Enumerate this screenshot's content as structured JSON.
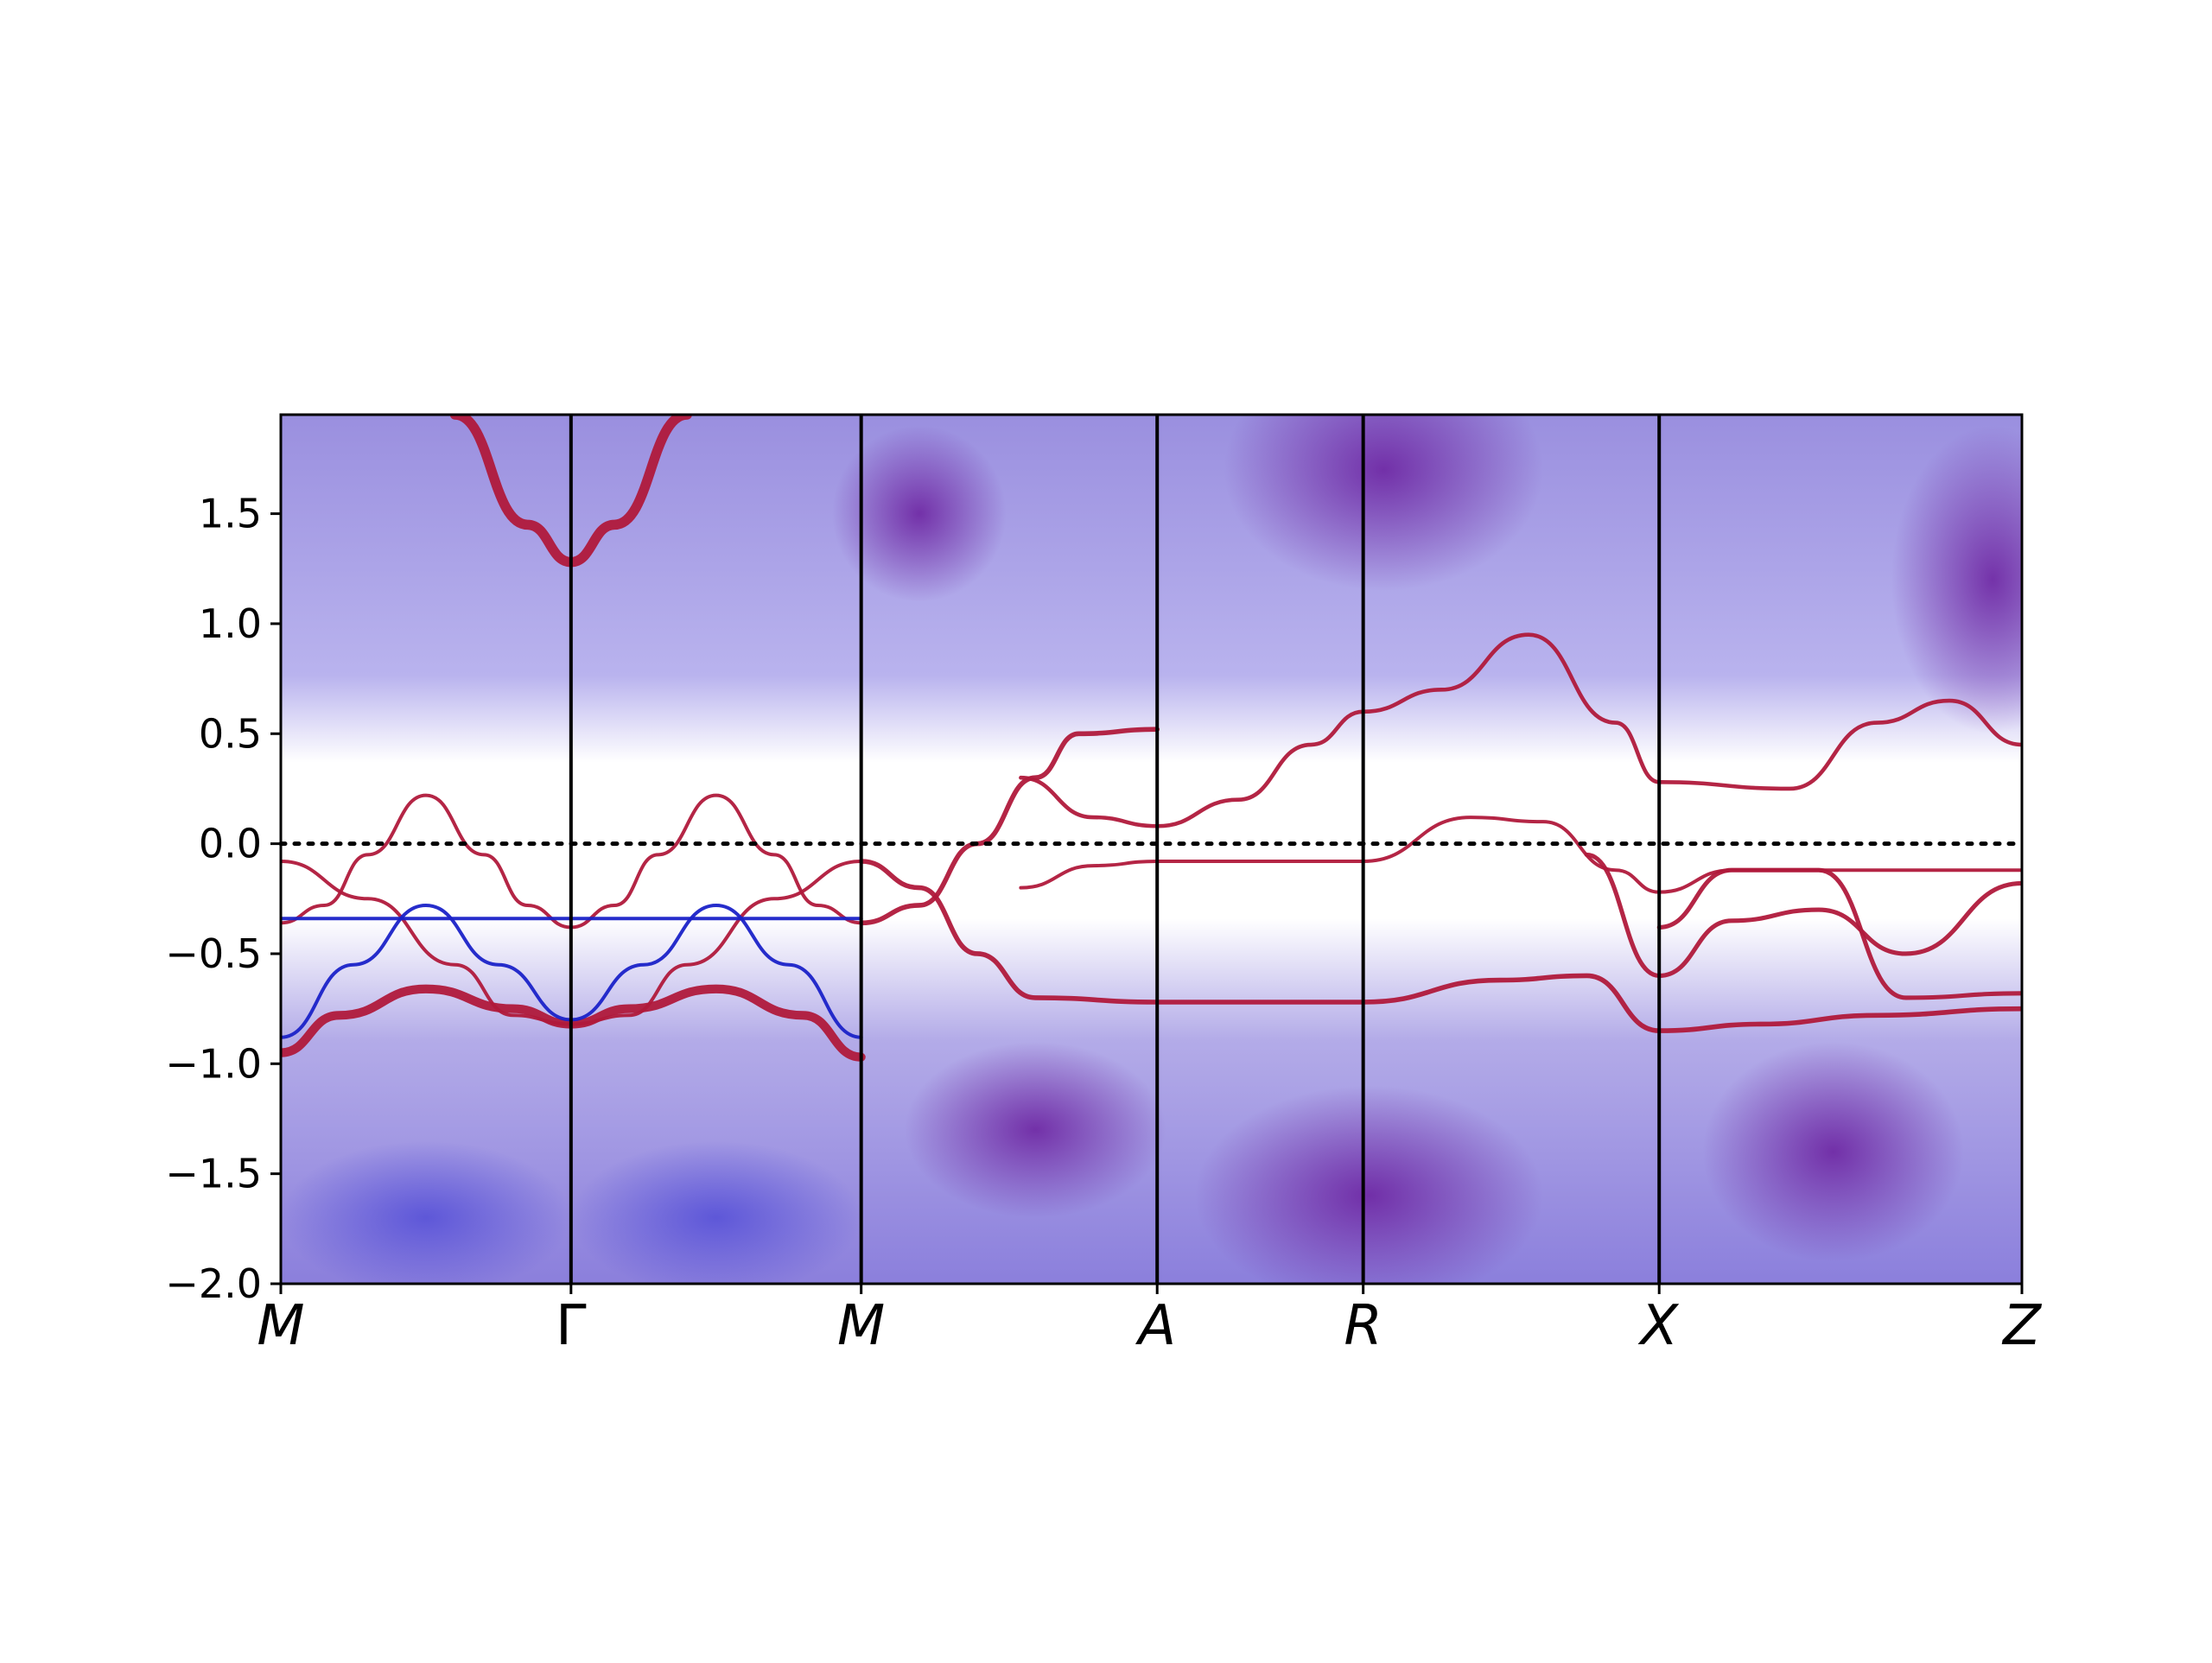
{
  "chart_data": {
    "type": "heatmap",
    "title": "",
    "xlabel": "",
    "ylabel": "",
    "ylim": [
      -2.0,
      1.95
    ],
    "xlim": [
      0,
      6
    ],
    "grid": false,
    "legend": "none",
    "y_ticks": [
      -2.0,
      -1.5,
      -1.0,
      -0.5,
      0.0,
      0.5,
      1.0,
      1.5
    ],
    "y_tick_labels": [
      "−2.0",
      "−1.5",
      "−1.0",
      "−0.5",
      "0.0",
      "0.5",
      "1.0",
      "1.5"
    ],
    "kpoints": [
      {
        "label": "M",
        "x": 0.0,
        "italic": true
      },
      {
        "label": "Γ",
        "x": 1.0,
        "italic": false
      },
      {
        "label": "M",
        "x": 2.0,
        "italic": true
      },
      {
        "label": "A",
        "x": 3.02,
        "italic": true
      },
      {
        "label": "R",
        "x": 3.73,
        "italic": true
      },
      {
        "label": "X",
        "x": 4.75,
        "italic": true
      },
      {
        "label": "Z",
        "x": 6.0,
        "italic": true
      }
    ],
    "fermi_level": 0.0,
    "colors": {
      "bulk_low": "#ffffff",
      "bulk_mid": "#a9a0e6",
      "bulk_high": "#6a1e9e",
      "surface_band": "#b0193b",
      "projected_band": "#1a22c8"
    },
    "bands": [
      {
        "name": "surface-upper-M-Gamma",
        "color": "surface",
        "width": 0.045,
        "points": [
          [
            0.6,
            1.95
          ],
          [
            0.85,
            1.45
          ],
          [
            1.0,
            1.28
          ],
          [
            1.15,
            1.45
          ],
          [
            1.4,
            1.95
          ]
        ]
      },
      {
        "name": "surface-arc-left",
        "color": "surface",
        "width": 0.012,
        "points": [
          [
            0.0,
            -0.36
          ],
          [
            0.15,
            -0.28
          ],
          [
            0.3,
            -0.05
          ],
          [
            0.5,
            0.22
          ],
          [
            0.7,
            -0.05
          ],
          [
            0.85,
            -0.28
          ],
          [
            1.0,
            -0.38
          ],
          [
            1.15,
            -0.28
          ],
          [
            1.3,
            -0.05
          ],
          [
            1.5,
            0.22
          ],
          [
            1.7,
            -0.05
          ],
          [
            1.85,
            -0.28
          ],
          [
            2.0,
            -0.36
          ]
        ]
      },
      {
        "name": "lower-arc",
        "color": "surface",
        "width": 0.04,
        "points": [
          [
            0.0,
            -0.95
          ],
          [
            0.2,
            -0.78
          ],
          [
            0.5,
            -0.66
          ],
          [
            0.8,
            -0.75
          ],
          [
            1.0,
            -0.82
          ],
          [
            1.2,
            -0.75
          ],
          [
            1.5,
            -0.66
          ],
          [
            1.8,
            -0.78
          ],
          [
            2.0,
            -0.97
          ]
        ]
      },
      {
        "name": "bulk-edge-right",
        "color": "surface",
        "width": 0.015,
        "points": [
          [
            0.0,
            -0.08
          ],
          [
            0.3,
            -0.25
          ],
          [
            0.6,
            -0.55
          ],
          [
            0.8,
            -0.78
          ],
          [
            1.0,
            -0.82
          ],
          [
            1.2,
            -0.78
          ],
          [
            1.4,
            -0.55
          ],
          [
            1.7,
            -0.25
          ],
          [
            2.0,
            -0.08
          ]
        ]
      },
      {
        "name": "cross-band-1",
        "color": "surface",
        "width": 0.022,
        "points": [
          [
            2.0,
            -0.36
          ],
          [
            2.2,
            -0.28
          ],
          [
            2.4,
            0.0
          ],
          [
            2.6,
            0.3
          ],
          [
            2.75,
            0.5
          ],
          [
            3.02,
            0.52
          ]
        ]
      },
      {
        "name": "cross-band-2",
        "color": "surface",
        "width": 0.022,
        "points": [
          [
            2.0,
            -0.08
          ],
          [
            2.2,
            -0.2
          ],
          [
            2.4,
            -0.5
          ],
          [
            2.6,
            -0.7
          ],
          [
            3.02,
            -0.72
          ],
          [
            3.73,
            -0.72
          ],
          [
            4.2,
            -0.62
          ],
          [
            4.5,
            -0.6
          ],
          [
            4.75,
            -0.85
          ],
          [
            5.1,
            -0.82
          ],
          [
            5.5,
            -0.78
          ],
          [
            6.0,
            -0.75
          ]
        ]
      },
      {
        "name": "cone-A",
        "color": "surface",
        "width": 0.018,
        "points": [
          [
            2.55,
            0.3
          ],
          [
            2.8,
            0.12
          ],
          [
            3.02,
            0.08
          ],
          [
            3.3,
            0.2
          ],
          [
            3.55,
            0.45
          ],
          [
            3.73,
            0.6
          ],
          [
            4.0,
            0.7
          ],
          [
            4.3,
            0.95
          ],
          [
            4.6,
            0.55
          ],
          [
            4.75,
            0.28
          ],
          [
            5.2,
            0.25
          ],
          [
            5.5,
            0.55
          ],
          [
            5.75,
            0.65
          ],
          [
            6.0,
            0.45
          ]
        ]
      },
      {
        "name": "flat-A-R",
        "color": "surface",
        "width": 0.014,
        "points": [
          [
            2.55,
            -0.2
          ],
          [
            2.8,
            -0.1
          ],
          [
            3.02,
            -0.08
          ],
          [
            3.73,
            -0.08
          ],
          [
            4.1,
            0.12
          ],
          [
            4.35,
            0.1
          ],
          [
            4.6,
            -0.12
          ],
          [
            4.75,
            -0.22
          ],
          [
            5.0,
            -0.12
          ],
          [
            5.3,
            -0.12
          ],
          [
            5.6,
            -0.12
          ],
          [
            6.0,
            -0.12
          ]
        ]
      },
      {
        "name": "X-crossing",
        "color": "surface",
        "width": 0.02,
        "points": [
          [
            4.5,
            -0.05
          ],
          [
            4.75,
            -0.6
          ],
          [
            5.0,
            -0.35
          ],
          [
            5.3,
            -0.3
          ],
          [
            5.6,
            -0.5
          ],
          [
            6.0,
            -0.18
          ]
        ]
      },
      {
        "name": "X-crossing-2",
        "color": "surface",
        "width": 0.02,
        "points": [
          [
            4.75,
            -0.38
          ],
          [
            5.0,
            -0.12
          ],
          [
            5.3,
            -0.12
          ],
          [
            5.6,
            -0.7
          ],
          [
            6.0,
            -0.68
          ]
        ]
      },
      {
        "name": "projected-flat",
        "color": "projected",
        "width": 0.012,
        "points": [
          [
            0.0,
            -0.34
          ],
          [
            2.0,
            -0.34
          ]
        ]
      },
      {
        "name": "projected-left-1",
        "color": "projected",
        "width": 0.015,
        "points": [
          [
            0.0,
            -0.88
          ],
          [
            0.25,
            -0.55
          ],
          [
            0.5,
            -0.28
          ],
          [
            0.75,
            -0.55
          ],
          [
            1.0,
            -0.8
          ],
          [
            1.25,
            -0.55
          ],
          [
            1.5,
            -0.28
          ],
          [
            1.75,
            -0.55
          ],
          [
            2.0,
            -0.88
          ]
        ]
      }
    ]
  }
}
